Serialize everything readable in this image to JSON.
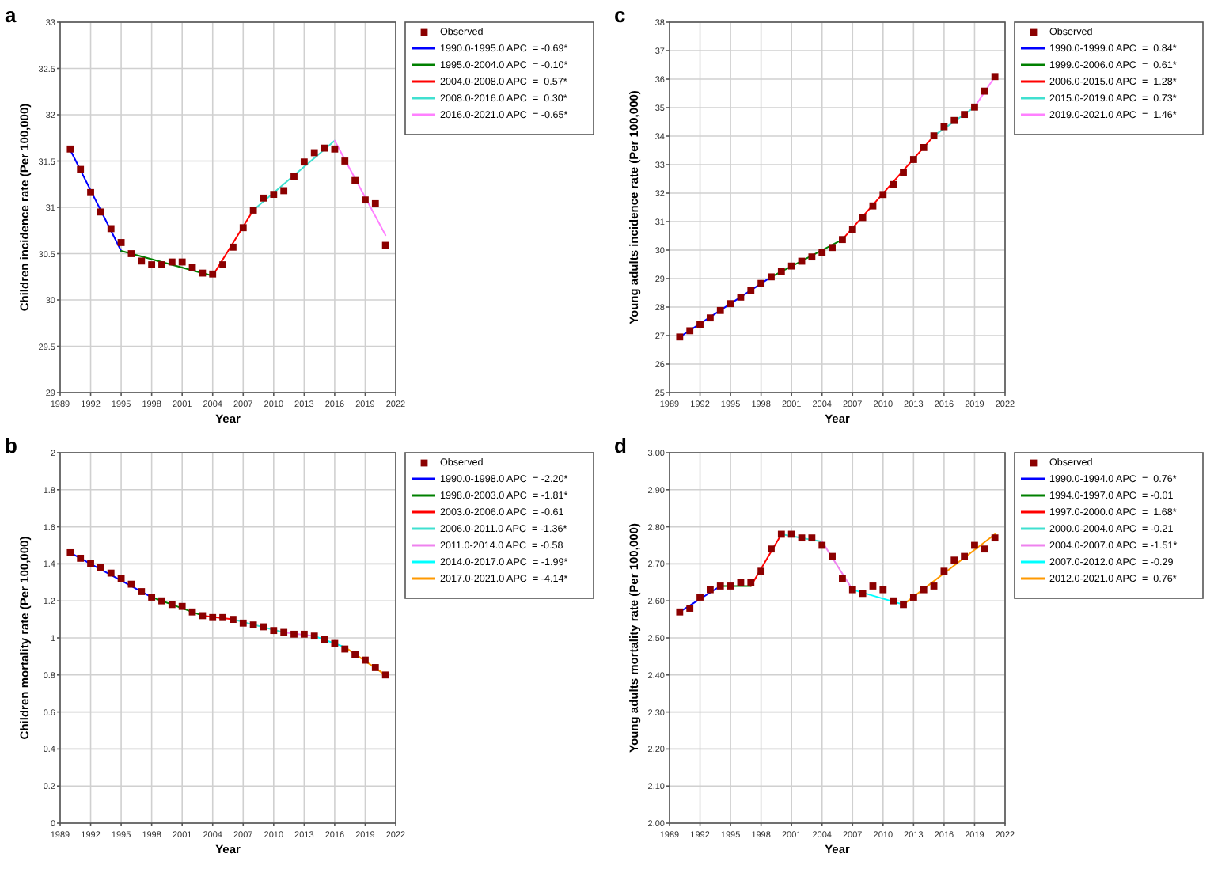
{
  "chart_data": [
    {
      "type": "scatter",
      "title": "a",
      "xlabel": "Year",
      "ylabel": "Children incidence rate (Per 100,000)",
      "xlim": [
        1989,
        2022
      ],
      "xticks": [
        1989,
        1992,
        1995,
        1998,
        2001,
        2004,
        2007,
        2010,
        2013,
        2016,
        2019,
        2022
      ],
      "ylim": [
        29,
        33
      ],
      "yticks": [
        29,
        29.5,
        30,
        30.5,
        31,
        31.5,
        32,
        32.5,
        33
      ],
      "grid": true,
      "legend": "top right",
      "x": [
        1990,
        1991,
        1992,
        1993,
        1994,
        1995,
        1996,
        1997,
        1998,
        1999,
        2000,
        2001,
        2002,
        2003,
        2004,
        2005,
        2006,
        2007,
        2008,
        2009,
        2010,
        2011,
        2012,
        2013,
        2014,
        2015,
        2016,
        2017,
        2018,
        2019,
        2020,
        2021
      ],
      "series": [
        {
          "name": "Observed",
          "type": "scatter",
          "marker": "square",
          "color": "#8b0000",
          "values": [
            31.63,
            31.41,
            31.16,
            30.95,
            30.77,
            30.62,
            30.5,
            30.42,
            30.38,
            30.38,
            30.41,
            30.41,
            30.35,
            30.29,
            30.28,
            30.38,
            30.57,
            30.78,
            30.97,
            31.1,
            31.14,
            31.18,
            31.33,
            31.49,
            31.59,
            31.64,
            31.63,
            31.5,
            31.29,
            31.08,
            31.04,
            30.59
          ]
        },
        {
          "name": "1990.0-1995.0 APC  = -0.69*",
          "type": "line",
          "color": "#0000ff",
          "x": [
            1990,
            1995
          ],
          "values": [
            31.62,
            30.53
          ]
        },
        {
          "name": "1995.0-2004.0 APC  = -0.10*",
          "type": "line",
          "color": "#008000",
          "x": [
            1995,
            2004
          ],
          "values": [
            30.53,
            30.26
          ]
        },
        {
          "name": "2004.0-2008.0 APC  =  0.57*",
          "type": "line",
          "color": "#ff0000",
          "x": [
            2004,
            2008
          ],
          "values": [
            30.26,
            30.97
          ]
        },
        {
          "name": "2008.0-2016.0 APC  =  0.30*",
          "type": "line",
          "color": "#40e0d0",
          "x": [
            2008,
            2016
          ],
          "values": [
            30.97,
            31.72
          ]
        },
        {
          "name": "2016.0-2021.0 APC  = -0.65*",
          "type": "line",
          "color": "#ff80ff",
          "x": [
            2016,
            2021
          ],
          "values": [
            31.72,
            30.7
          ]
        }
      ]
    },
    {
      "type": "scatter",
      "title": "c",
      "xlabel": "Year",
      "ylabel": "Young adults incidence rate (Per 100,000)",
      "xlim": [
        1989,
        2022
      ],
      "xticks": [
        1989,
        1992,
        1995,
        1998,
        2001,
        2004,
        2007,
        2010,
        2013,
        2016,
        2019,
        2022
      ],
      "ylim": [
        25,
        38
      ],
      "yticks": [
        25,
        26,
        27,
        28,
        29,
        30,
        31,
        32,
        33,
        34,
        35,
        36,
        37,
        38
      ],
      "grid": true,
      "legend": "top right",
      "x": [
        1990,
        1991,
        1992,
        1993,
        1994,
        1995,
        1996,
        1997,
        1998,
        1999,
        2000,
        2001,
        2002,
        2003,
        2004,
        2005,
        2006,
        2007,
        2008,
        2009,
        2010,
        2011,
        2012,
        2013,
        2014,
        2015,
        2016,
        2017,
        2018,
        2019,
        2020,
        2021
      ],
      "series": [
        {
          "name": "Observed",
          "type": "scatter",
          "marker": "square",
          "color": "#8b0000",
          "values": [
            26.95,
            27.17,
            27.39,
            27.62,
            27.88,
            28.12,
            28.35,
            28.59,
            28.83,
            29.06,
            29.25,
            29.44,
            29.61,
            29.76,
            29.91,
            30.09,
            30.37,
            30.73,
            31.14,
            31.55,
            31.95,
            32.3,
            32.73,
            33.18,
            33.6,
            34.01,
            34.33,
            34.55,
            34.76,
            35.02,
            35.58,
            36.09
          ]
        },
        {
          "name": "1990.0-1999.0 APC  =  0.84*",
          "type": "line",
          "color": "#0000ff",
          "x": [
            1990,
            1999
          ],
          "values": [
            26.95,
            29.06
          ]
        },
        {
          "name": "1999.0-2006.0 APC  =  0.61*",
          "type": "line",
          "color": "#008000",
          "x": [
            1999,
            2006
          ],
          "values": [
            29.06,
            30.37
          ]
        },
        {
          "name": "2006.0-2015.0 APC  =  1.28*",
          "type": "line",
          "color": "#ff0000",
          "x": [
            2006,
            2015
          ],
          "values": [
            30.37,
            34.01
          ]
        },
        {
          "name": "2015.0-2019.0 APC  =  0.73*",
          "type": "line",
          "color": "#40e0d0",
          "x": [
            2015,
            2019
          ],
          "values": [
            34.01,
            35.02
          ]
        },
        {
          "name": "2019.0-2021.0 APC  =  1.46*",
          "type": "line",
          "color": "#ff80ff",
          "x": [
            2019,
            2021
          ],
          "values": [
            35.02,
            36.09
          ]
        }
      ]
    },
    {
      "type": "scatter",
      "title": "b",
      "xlabel": "Year",
      "ylabel": "Children mortality rate (Per 100,000)",
      "xlim": [
        1989,
        2022
      ],
      "xticks": [
        1989,
        1992,
        1995,
        1998,
        2001,
        2004,
        2007,
        2010,
        2013,
        2016,
        2019,
        2022
      ],
      "ylim": [
        0,
        2
      ],
      "yticks": [
        0,
        0.2,
        0.4,
        0.6,
        0.8,
        1,
        1.2,
        1.4,
        1.6,
        1.8,
        2
      ],
      "grid": true,
      "legend": "top right",
      "x": [
        1990,
        1991,
        1992,
        1993,
        1994,
        1995,
        1996,
        1997,
        1998,
        1999,
        2000,
        2001,
        2002,
        2003,
        2004,
        2005,
        2006,
        2007,
        2008,
        2009,
        2010,
        2011,
        2012,
        2013,
        2014,
        2015,
        2016,
        2017,
        2018,
        2019,
        2020,
        2021
      ],
      "series": [
        {
          "name": "Observed",
          "type": "scatter",
          "marker": "square",
          "color": "#8b0000",
          "values": [
            1.46,
            1.43,
            1.4,
            1.38,
            1.35,
            1.32,
            1.29,
            1.25,
            1.22,
            1.2,
            1.18,
            1.17,
            1.14,
            1.12,
            1.11,
            1.11,
            1.1,
            1.08,
            1.07,
            1.06,
            1.04,
            1.03,
            1.02,
            1.02,
            1.01,
            0.99,
            0.97,
            0.94,
            0.91,
            0.88,
            0.84,
            0.8
          ]
        },
        {
          "name": "1990.0-1998.0 APC  = -2.20*",
          "type": "line",
          "color": "#0000ff",
          "x": [
            1990,
            1998
          ],
          "values": [
            1.46,
            1.22
          ]
        },
        {
          "name": "1998.0-2003.0 APC  = -1.81*",
          "type": "line",
          "color": "#008000",
          "x": [
            1998,
            2003
          ],
          "values": [
            1.22,
            1.12
          ]
        },
        {
          "name": "2003.0-2006.0 APC  = -0.61",
          "type": "line",
          "color": "#ff0000",
          "x": [
            2003,
            2006
          ],
          "values": [
            1.12,
            1.1
          ]
        },
        {
          "name": "2006.0-2011.0 APC  = -1.36*",
          "type": "line",
          "color": "#40e0d0",
          "x": [
            2006,
            2011
          ],
          "values": [
            1.1,
            1.03
          ]
        },
        {
          "name": "2011.0-2014.0 APC  = -0.58",
          "type": "line",
          "color": "#ee82ee",
          "x": [
            2011,
            2014
          ],
          "values": [
            1.03,
            1.01
          ]
        },
        {
          "name": "2014.0-2017.0 APC  = -1.99*",
          "type": "line",
          "color": "#00ffff",
          "x": [
            2014,
            2017
          ],
          "values": [
            1.01,
            0.95
          ]
        },
        {
          "name": "2017.0-2021.0 APC  = -4.14*",
          "type": "line",
          "color": "#ff9900",
          "x": [
            2017,
            2021
          ],
          "values": [
            0.95,
            0.8
          ]
        }
      ]
    },
    {
      "type": "scatter",
      "title": "d",
      "xlabel": "Year",
      "ylabel": "Young adults mortality rate (Per 100,000)",
      "xlim": [
        1989,
        2022
      ],
      "xticks": [
        1989,
        1992,
        1995,
        1998,
        2001,
        2004,
        2007,
        2010,
        2013,
        2016,
        2019,
        2022
      ],
      "ylim": [
        2,
        3
      ],
      "yticks": [
        {
          "value": 2,
          "label": "2.00"
        },
        {
          "value": 2.1,
          "label": "2.10"
        },
        {
          "value": 2.2,
          "label": "2.20"
        },
        {
          "value": 2.3,
          "label": "2.30"
        },
        {
          "value": 2.4,
          "label": "2.40"
        },
        {
          "value": 2.5,
          "label": "2.50"
        },
        {
          "value": 2.6,
          "label": "2.60"
        },
        {
          "value": 2.7,
          "label": "2.70"
        },
        {
          "value": 2.8,
          "label": "2.80"
        },
        {
          "value": 2.9,
          "label": "2.90"
        },
        {
          "value": 3,
          "label": "3.00"
        }
      ],
      "grid": true,
      "legend": "top right",
      "x": [
        1990,
        1991,
        1992,
        1993,
        1994,
        1995,
        1996,
        1997,
        1998,
        1999,
        2000,
        2001,
        2002,
        2003,
        2004,
        2005,
        2006,
        2007,
        2008,
        2009,
        2010,
        2011,
        2012,
        2013,
        2014,
        2015,
        2016,
        2017,
        2018,
        2019,
        2020,
        2021
      ],
      "series": [
        {
          "name": "Observed",
          "type": "scatter",
          "marker": "square",
          "color": "#8b0000",
          "values": [
            2.57,
            2.58,
            2.61,
            2.63,
            2.64,
            2.64,
            2.65,
            2.65,
            2.68,
            2.74,
            2.78,
            2.78,
            2.77,
            2.77,
            2.75,
            2.72,
            2.66,
            2.63,
            2.62,
            2.64,
            2.63,
            2.6,
            2.59,
            2.61,
            2.63,
            2.64,
            2.68,
            2.71,
            2.72,
            2.75,
            2.74,
            2.77
          ]
        },
        {
          "name": "1990.0-1994.0 APC  =  0.76*",
          "type": "line",
          "color": "#0000ff",
          "x": [
            1990,
            1994
          ],
          "values": [
            2.57,
            2.64
          ]
        },
        {
          "name": "1994.0-1997.0 APC  = -0.01",
          "type": "line",
          "color": "#008000",
          "x": [
            1994,
            1997
          ],
          "values": [
            2.64,
            2.64
          ]
        },
        {
          "name": "1997.0-2000.0 APC  =  1.68*",
          "type": "line",
          "color": "#ff0000",
          "x": [
            1997,
            2000
          ],
          "values": [
            2.64,
            2.78
          ]
        },
        {
          "name": "2000.0-2004.0 APC  = -0.21",
          "type": "line",
          "color": "#40e0d0",
          "x": [
            2000,
            2004
          ],
          "values": [
            2.78,
            2.76
          ]
        },
        {
          "name": "2004.0-2007.0 APC  = -1.51*",
          "type": "line",
          "color": "#ee82ee",
          "x": [
            2004,
            2007
          ],
          "values": [
            2.76,
            2.63
          ]
        },
        {
          "name": "2007.0-2012.0 APC  = -0.29",
          "type": "line",
          "color": "#00ffff",
          "x": [
            2007,
            2012
          ],
          "values": [
            2.63,
            2.59
          ]
        },
        {
          "name": "2012.0-2021.0 APC  =  0.76*",
          "type": "line",
          "color": "#ff9900",
          "x": [
            2012,
            2021
          ],
          "values": [
            2.59,
            2.78
          ]
        }
      ]
    }
  ]
}
